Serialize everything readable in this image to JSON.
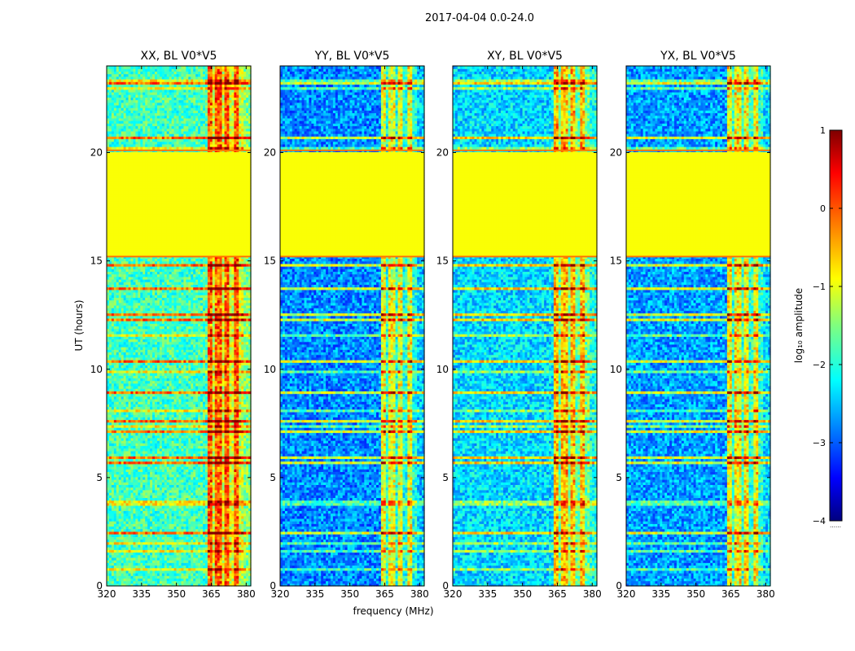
{
  "chart_data": {
    "type": "heatmap",
    "title": "2017-04-04 0.0-24.0",
    "xlabel": "frequency (MHz)",
    "ylabel": "UT (hours)",
    "xlim": [
      320,
      382
    ],
    "ylim": [
      0,
      24
    ],
    "xticks": [
      320,
      335,
      350,
      365,
      380
    ],
    "yticks": [
      0,
      5,
      10,
      15,
      20
    ],
    "no_data_interval_hours": [
      15.2,
      20.1
    ],
    "rfi_band_mhz": [
      363,
      379
    ],
    "colorbar": {
      "label": "log₁₀ amplitude",
      "min": -4,
      "max": 1,
      "ticks": [
        1,
        0,
        -1,
        -2,
        -3,
        -4
      ],
      "tick_labels": [
        "1",
        "0",
        "−1",
        "−2",
        "−3",
        "−4"
      ],
      "colormap": "jet",
      "footnote": "……"
    },
    "panels": [
      {
        "title": "XX, BL V0*V5",
        "baseline_level": -1.8
      },
      {
        "title": "YY, BL V0*V5",
        "baseline_level": -2.7
      },
      {
        "title": "XY, BL V0*V5",
        "baseline_level": -2.3
      },
      {
        "title": "YX, BL V0*V5",
        "baseline_level": -2.6
      }
    ]
  }
}
